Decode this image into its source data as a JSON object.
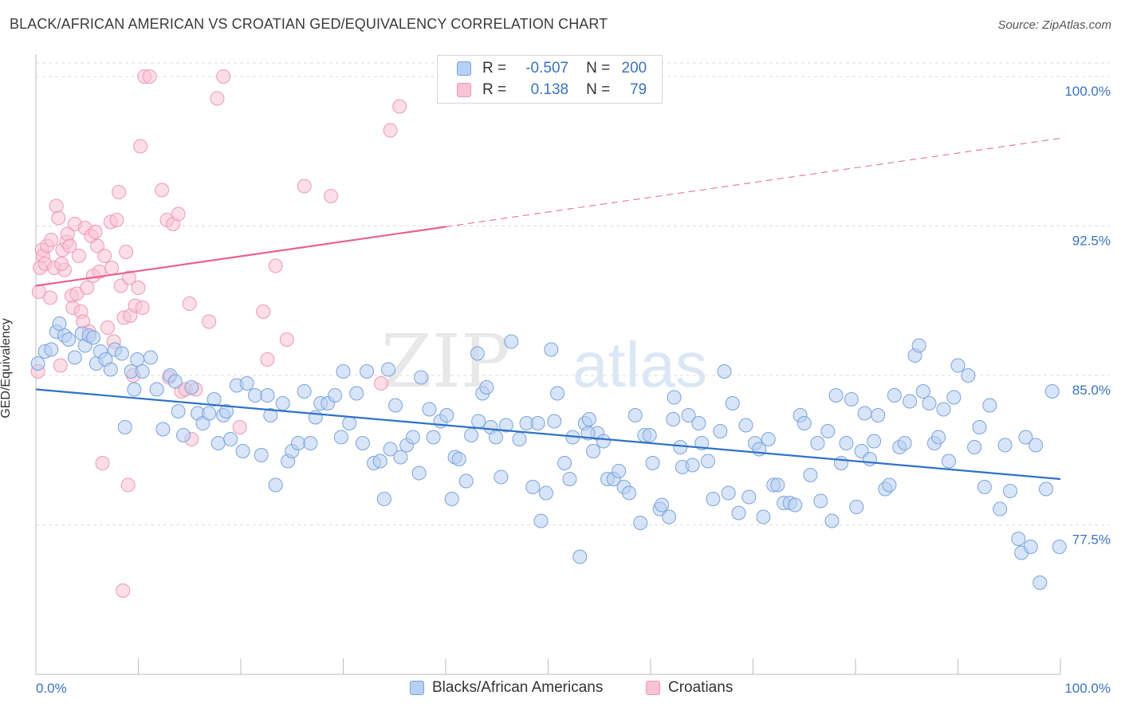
{
  "title": "BLACK/AFRICAN AMERICAN VS CROATIAN GED/EQUIVALENCY CORRELATION CHART",
  "source": "Source: ZipAtlas.com",
  "watermark": {
    "zip": "ZIP",
    "atlas": "atlas"
  },
  "legend": {
    "r_label": "R =",
    "n_label": "N =",
    "blue": {
      "r": "-0.507",
      "n": "200"
    },
    "pink": {
      "r": "0.138",
      "n": "79"
    }
  },
  "bottom_legend": {
    "blue": "Blacks/African Americans",
    "pink": "Croatians"
  },
  "colors": {
    "blue_fill": "#b8d0f2",
    "blue_stroke": "#7aa3dc",
    "blue_line": "#2f72c8",
    "pink_fill": "#f8c3d4",
    "pink_stroke": "#ef98b5",
    "pink_line": "#e8628d",
    "tick_label": "#3a72c4",
    "grid": "#dcdcdc"
  },
  "chart_data": {
    "type": "scatter",
    "ylabel": "GED/Equivalency",
    "xlabel": "",
    "x_tick_labels": [
      "0.0%",
      "100.0%"
    ],
    "y_tick_labels": [
      "100.0%",
      "92.5%",
      "85.0%",
      "77.5%"
    ],
    "y_ticks": [
      100.0,
      92.5,
      85.0,
      77.5
    ],
    "xlim": [
      0,
      100
    ],
    "ylim": [
      70.0,
      100.8
    ],
    "grid": true,
    "series": [
      {
        "name": "Blacks/African Americans",
        "trend": {
          "x": [
            0,
            100
          ],
          "y": [
            84.3,
            79.8
          ],
          "dashed_from": null
        },
        "points": [
          [
            0.2,
            85.6
          ],
          [
            0.9,
            86.2
          ],
          [
            1.5,
            86.3
          ],
          [
            2.0,
            87.2
          ],
          [
            2.3,
            87.6
          ],
          [
            2.8,
            87.0
          ],
          [
            3.2,
            86.8
          ],
          [
            3.8,
            85.9
          ],
          [
            4.5,
            87.1
          ],
          [
            4.8,
            86.5
          ],
          [
            5.2,
            87.0
          ],
          [
            5.6,
            86.9
          ],
          [
            5.9,
            85.6
          ],
          [
            6.3,
            86.2
          ],
          [
            6.8,
            85.8
          ],
          [
            7.3,
            85.3
          ],
          [
            7.7,
            86.3
          ],
          [
            8.4,
            86.1
          ],
          [
            8.7,
            82.4
          ],
          [
            9.3,
            85.2
          ],
          [
            9.9,
            85.8
          ],
          [
            10.4,
            85.2
          ],
          [
            11.2,
            85.9
          ],
          [
            11.8,
            84.3
          ],
          [
            12.4,
            82.3
          ],
          [
            13.1,
            85.0
          ],
          [
            13.6,
            84.7
          ],
          [
            13.9,
            83.2
          ],
          [
            14.4,
            82.0
          ],
          [
            15.2,
            84.4
          ],
          [
            15.8,
            83.1
          ],
          [
            16.3,
            82.6
          ],
          [
            16.9,
            83.1
          ],
          [
            17.4,
            83.8
          ],
          [
            17.8,
            81.6
          ],
          [
            18.3,
            83.0
          ],
          [
            19.0,
            81.8
          ],
          [
            19.6,
            84.5
          ],
          [
            20.2,
            81.2
          ],
          [
            20.6,
            84.6
          ],
          [
            21.4,
            84.0
          ],
          [
            22.0,
            81.0
          ],
          [
            22.6,
            84.0
          ],
          [
            22.9,
            83.0
          ],
          [
            23.4,
            79.5
          ],
          [
            24.1,
            83.6
          ],
          [
            24.6,
            80.7
          ],
          [
            25.0,
            81.2
          ],
          [
            25.6,
            81.6
          ],
          [
            26.2,
            84.2
          ],
          [
            26.8,
            81.6
          ],
          [
            27.3,
            82.9
          ],
          [
            27.8,
            83.6
          ],
          [
            28.5,
            83.6
          ],
          [
            29.2,
            84.0
          ],
          [
            29.8,
            81.9
          ],
          [
            30.0,
            85.2
          ],
          [
            30.6,
            82.6
          ],
          [
            31.3,
            84.1
          ],
          [
            31.9,
            81.6
          ],
          [
            32.3,
            85.2
          ],
          [
            33.0,
            80.6
          ],
          [
            33.6,
            80.7
          ],
          [
            34.0,
            78.8
          ],
          [
            34.6,
            81.3
          ],
          [
            35.1,
            83.5
          ],
          [
            35.6,
            80.9
          ],
          [
            36.2,
            81.5
          ],
          [
            36.8,
            81.9
          ],
          [
            37.4,
            80.1
          ],
          [
            37.6,
            84.9
          ],
          [
            38.4,
            83.3
          ],
          [
            38.8,
            81.9
          ],
          [
            39.5,
            82.7
          ],
          [
            40.1,
            83.0
          ],
          [
            40.6,
            78.8
          ],
          [
            40.9,
            80.9
          ],
          [
            41.3,
            80.8
          ],
          [
            42.0,
            79.7
          ],
          [
            42.5,
            82.0
          ],
          [
            43.2,
            82.7
          ],
          [
            43.6,
            84.1
          ],
          [
            44.0,
            84.4
          ],
          [
            44.4,
            82.4
          ],
          [
            44.9,
            81.9
          ],
          [
            45.4,
            79.9
          ],
          [
            45.9,
            82.5
          ],
          [
            46.4,
            86.7
          ],
          [
            47.2,
            81.8
          ],
          [
            47.9,
            82.6
          ],
          [
            48.5,
            79.4
          ],
          [
            49.0,
            82.6
          ],
          [
            49.3,
            77.7
          ],
          [
            49.8,
            79.1
          ],
          [
            50.3,
            86.3
          ],
          [
            50.6,
            82.7
          ],
          [
            50.9,
            84.1
          ],
          [
            51.6,
            80.6
          ],
          [
            52.1,
            79.8
          ],
          [
            52.4,
            81.9
          ],
          [
            53.1,
            75.9
          ],
          [
            53.6,
            82.6
          ],
          [
            54.0,
            82.8
          ],
          [
            54.4,
            81.2
          ],
          [
            54.8,
            82.1
          ],
          [
            55.4,
            81.7
          ],
          [
            55.8,
            79.8
          ],
          [
            56.4,
            79.8
          ],
          [
            56.9,
            80.2
          ],
          [
            57.4,
            79.4
          ],
          [
            57.9,
            79.1
          ],
          [
            58.5,
            83.0
          ],
          [
            59.0,
            77.6
          ],
          [
            59.4,
            82.0
          ],
          [
            59.9,
            82.0
          ],
          [
            60.2,
            80.6
          ],
          [
            60.9,
            78.3
          ],
          [
            61.1,
            78.5
          ],
          [
            61.8,
            77.9
          ],
          [
            62.2,
            82.8
          ],
          [
            62.9,
            81.4
          ],
          [
            63.1,
            80.4
          ],
          [
            63.7,
            83.0
          ],
          [
            64.1,
            80.5
          ],
          [
            64.7,
            82.6
          ],
          [
            65.0,
            81.6
          ],
          [
            65.6,
            80.7
          ],
          [
            66.1,
            78.8
          ],
          [
            66.8,
            82.2
          ],
          [
            67.2,
            85.2
          ],
          [
            67.6,
            79.1
          ],
          [
            68.0,
            83.6
          ],
          [
            68.6,
            78.1
          ],
          [
            69.3,
            82.5
          ],
          [
            69.6,
            78.9
          ],
          [
            70.2,
            81.6
          ],
          [
            70.6,
            81.3
          ],
          [
            71.0,
            77.9
          ],
          [
            71.5,
            81.8
          ],
          [
            72.0,
            79.5
          ],
          [
            72.4,
            79.5
          ],
          [
            73.0,
            78.6
          ],
          [
            73.6,
            78.6
          ],
          [
            74.1,
            78.5
          ],
          [
            74.6,
            83.0
          ],
          [
            75.0,
            82.6
          ],
          [
            75.6,
            80.0
          ],
          [
            76.3,
            81.6
          ],
          [
            76.6,
            78.7
          ],
          [
            77.3,
            82.2
          ],
          [
            77.7,
            77.7
          ],
          [
            78.1,
            84.0
          ],
          [
            78.6,
            80.6
          ],
          [
            79.1,
            81.6
          ],
          [
            79.6,
            83.8
          ],
          [
            80.1,
            78.4
          ],
          [
            80.6,
            81.2
          ],
          [
            80.9,
            83.1
          ],
          [
            81.4,
            80.8
          ],
          [
            81.8,
            81.7
          ],
          [
            82.2,
            83.0
          ],
          [
            82.9,
            79.3
          ],
          [
            83.3,
            79.5
          ],
          [
            83.8,
            84.0
          ],
          [
            84.3,
            81.4
          ],
          [
            84.8,
            81.6
          ],
          [
            85.3,
            83.7
          ],
          [
            85.8,
            86.0
          ],
          [
            86.2,
            86.5
          ],
          [
            86.6,
            84.2
          ],
          [
            87.2,
            83.6
          ],
          [
            87.7,
            81.6
          ],
          [
            88.1,
            81.9
          ],
          [
            88.6,
            83.3
          ],
          [
            89.1,
            80.7
          ],
          [
            89.6,
            83.9
          ],
          [
            90.0,
            85.5
          ],
          [
            91.0,
            85.0
          ],
          [
            91.6,
            81.4
          ],
          [
            92.1,
            82.4
          ],
          [
            92.6,
            79.4
          ],
          [
            93.1,
            83.5
          ],
          [
            94.1,
            78.3
          ],
          [
            94.6,
            81.5
          ],
          [
            95.1,
            79.2
          ],
          [
            95.9,
            76.8
          ],
          [
            96.2,
            76.1
          ],
          [
            96.6,
            81.9
          ],
          [
            97.1,
            76.4
          ],
          [
            97.6,
            81.5
          ],
          [
            98.0,
            74.6
          ],
          [
            98.6,
            79.3
          ],
          [
            99.2,
            84.2
          ],
          [
            99.9,
            76.4
          ],
          [
            34.4,
            85.3
          ],
          [
            18.6,
            83.2
          ],
          [
            9.6,
            84.3
          ],
          [
            43.1,
            86.1
          ],
          [
            62.3,
            83.9
          ],
          [
            53.9,
            82.1
          ]
        ]
      },
      {
        "name": "Croatians",
        "trend": {
          "x": [
            0,
            100
          ],
          "y": [
            89.5,
            96.9
          ],
          "dashed_from": 40
        },
        "points": [
          [
            0.2,
            85.2
          ],
          [
            0.3,
            89.2
          ],
          [
            0.4,
            90.4
          ],
          [
            0.6,
            91.3
          ],
          [
            0.7,
            91.0
          ],
          [
            0.9,
            90.6
          ],
          [
            1.1,
            91.5
          ],
          [
            1.4,
            88.9
          ],
          [
            1.5,
            91.8
          ],
          [
            1.8,
            90.4
          ],
          [
            2.0,
            93.5
          ],
          [
            2.2,
            92.9
          ],
          [
            2.4,
            85.5
          ],
          [
            2.6,
            91.3
          ],
          [
            2.8,
            90.3
          ],
          [
            3.0,
            91.7
          ],
          [
            3.1,
            92.1
          ],
          [
            3.3,
            91.5
          ],
          [
            3.5,
            89.0
          ],
          [
            3.6,
            88.4
          ],
          [
            3.8,
            92.6
          ],
          [
            4.0,
            89.1
          ],
          [
            4.2,
            91.0
          ],
          [
            4.4,
            88.2
          ],
          [
            4.6,
            87.7
          ],
          [
            4.8,
            92.4
          ],
          [
            5.0,
            89.4
          ],
          [
            5.2,
            87.2
          ],
          [
            5.4,
            92.0
          ],
          [
            5.6,
            90.0
          ],
          [
            5.8,
            92.2
          ],
          [
            6.0,
            91.5
          ],
          [
            6.2,
            90.2
          ],
          [
            6.5,
            80.6
          ],
          [
            6.7,
            91.0
          ],
          [
            7.0,
            87.4
          ],
          [
            7.3,
            92.7
          ],
          [
            7.4,
            90.4
          ],
          [
            7.6,
            86.7
          ],
          [
            7.9,
            92.8
          ],
          [
            8.1,
            94.2
          ],
          [
            8.3,
            89.5
          ],
          [
            8.5,
            74.2
          ],
          [
            8.6,
            87.9
          ],
          [
            8.8,
            91.2
          ],
          [
            9.0,
            79.5
          ],
          [
            9.1,
            89.9
          ],
          [
            9.2,
            88.0
          ],
          [
            9.5,
            85.0
          ],
          [
            9.7,
            88.5
          ],
          [
            10.2,
            96.5
          ],
          [
            10.4,
            88.4
          ],
          [
            10.0,
            89.4
          ],
          [
            10.6,
            100.0
          ],
          [
            11.1,
            100.0
          ],
          [
            12.3,
            94.3
          ],
          [
            12.8,
            92.8
          ],
          [
            13.0,
            84.9
          ],
          [
            13.4,
            92.6
          ],
          [
            13.9,
            93.1
          ],
          [
            14.2,
            84.2
          ],
          [
            14.6,
            84.3
          ],
          [
            15.0,
            88.6
          ],
          [
            15.2,
            81.8
          ],
          [
            15.6,
            84.3
          ],
          [
            16.9,
            87.7
          ],
          [
            17.7,
            98.9
          ],
          [
            18.3,
            100.0
          ],
          [
            19.9,
            82.4
          ],
          [
            22.2,
            88.2
          ],
          [
            22.6,
            85.8
          ],
          [
            23.4,
            90.5
          ],
          [
            24.5,
            86.8
          ],
          [
            26.2,
            94.5
          ],
          [
            28.8,
            94.0
          ],
          [
            33.7,
            84.6
          ],
          [
            34.6,
            97.3
          ],
          [
            35.5,
            98.5
          ],
          [
            2.5,
            90.6
          ]
        ]
      }
    ]
  }
}
